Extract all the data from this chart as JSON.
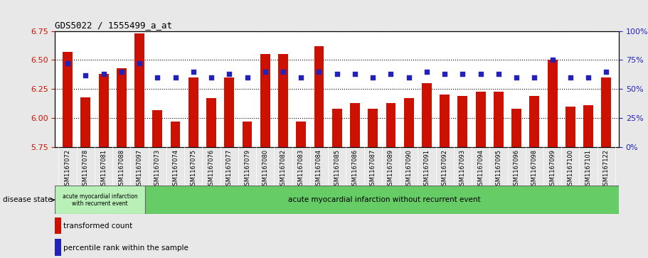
{
  "title": "GDS5022 / 1555499_a_at",
  "samples": [
    "GSM1167072",
    "GSM1167078",
    "GSM1167081",
    "GSM1167088",
    "GSM1167097",
    "GSM1167073",
    "GSM1167074",
    "GSM1167075",
    "GSM1167076",
    "GSM1167077",
    "GSM1167079",
    "GSM1167080",
    "GSM1167082",
    "GSM1167083",
    "GSM1167084",
    "GSM1167085",
    "GSM1167086",
    "GSM1167087",
    "GSM1167089",
    "GSM1167090",
    "GSM1167091",
    "GSM1167092",
    "GSM1167093",
    "GSM1167094",
    "GSM1167095",
    "GSM1167096",
    "GSM1167098",
    "GSM1167099",
    "GSM1167100",
    "GSM1167101",
    "GSM1167122"
  ],
  "bar_values": [
    6.57,
    6.18,
    6.38,
    6.43,
    6.73,
    6.07,
    5.97,
    6.35,
    6.17,
    6.35,
    5.97,
    6.55,
    6.55,
    5.97,
    6.62,
    6.08,
    6.13,
    6.08,
    6.13,
    6.17,
    6.3,
    6.2,
    6.19,
    6.23,
    6.23,
    6.08,
    6.19,
    6.5,
    6.1,
    6.11,
    6.35
  ],
  "percentile_values": [
    72,
    62,
    63,
    65,
    72,
    60,
    60,
    65,
    60,
    63,
    60,
    65,
    65,
    60,
    65,
    63,
    63,
    60,
    63,
    60,
    65,
    63,
    63,
    63,
    63,
    60,
    60,
    75,
    60,
    60,
    65
  ],
  "ylim_left": [
    5.75,
    6.75
  ],
  "ylim_right": [
    0,
    100
  ],
  "yticks_left": [
    5.75,
    6.0,
    6.25,
    6.5,
    6.75
  ],
  "yticks_right": [
    0,
    25,
    50,
    75,
    100
  ],
  "bar_color": "#cc1100",
  "dot_color": "#2222bb",
  "figure_bg": "#e8e8e8",
  "plot_bg": "#ffffff",
  "group1_label": "acute myocardial infarction\nwith recurrent event",
  "group2_label": "acute myocardial infarction without recurrent event",
  "group1_count": 5,
  "disease_state_label": "disease state",
  "legend_bar_label": "transformed count",
  "legend_dot_label": "percentile rank within the sample",
  "xtick_bg": "#c8c8c8"
}
